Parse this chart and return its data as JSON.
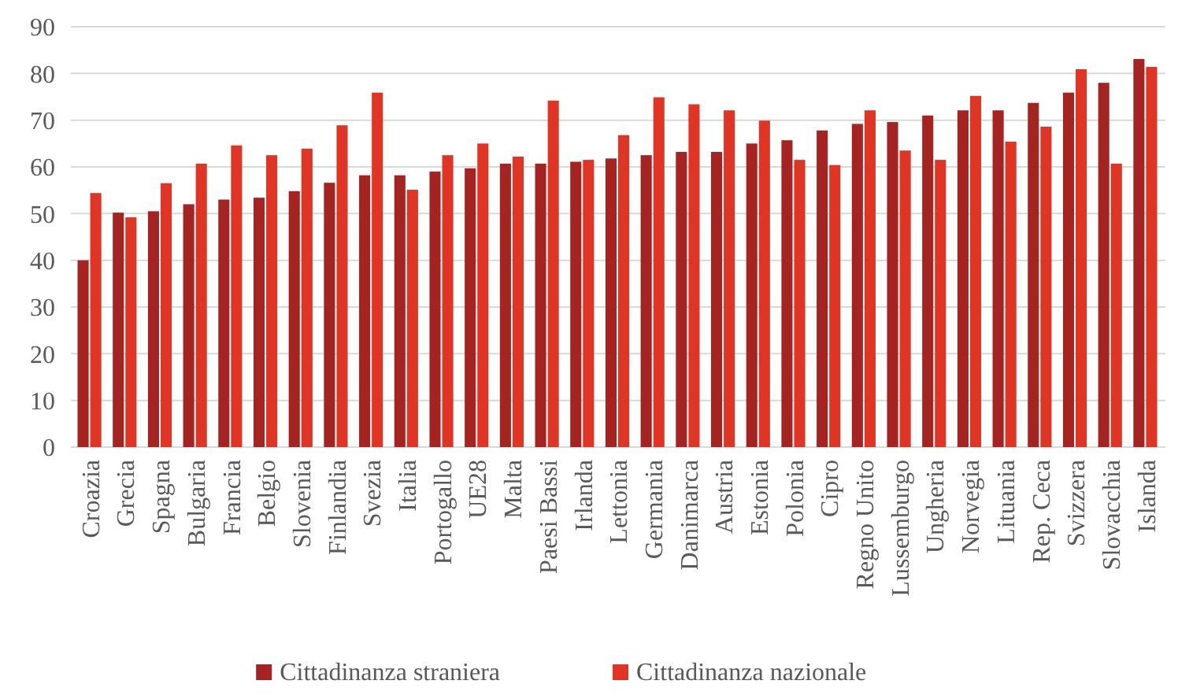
{
  "chart_data": {
    "type": "bar",
    "categories": [
      "Croazia",
      "Grecia",
      "Spagna",
      "Bulgaria",
      "Francia",
      "Belgio",
      "Slovenia",
      "Finlandia",
      "Svezia",
      "Italia",
      "Portogallo",
      "UE28",
      "Malta",
      "Paesi Bassi",
      "Irlanda",
      "Lettonia",
      "Germania",
      "Danimarca",
      "Austria",
      "Estonia",
      "Polonia",
      "Cipro",
      "Regno Unito",
      "Lussemburgo",
      "Ungheria",
      "Norvegia",
      "Lituania",
      "Rep. Ceca",
      "Svizzera",
      "Slovacchia",
      "Islanda"
    ],
    "series": [
      {
        "name": "Cittadinanza straniera",
        "color": "#a52422",
        "values": [
          40.0,
          50.2,
          50.5,
          52.0,
          53.0,
          53.4,
          54.8,
          56.6,
          58.2,
          58.2,
          59.0,
          59.7,
          60.7,
          60.7,
          61.1,
          61.8,
          62.5,
          63.2,
          63.2,
          65.0,
          65.7,
          67.8,
          69.2,
          69.6,
          71.0,
          72.1,
          72.1,
          73.7,
          75.9,
          78.0,
          83.1
        ]
      },
      {
        "name": "Cittadinanza nazionale",
        "color": "#e03424",
        "values": [
          54.4,
          49.2,
          56.5,
          60.7,
          64.6,
          62.5,
          63.9,
          68.9,
          75.9,
          55.1,
          62.5,
          65.0,
          62.2,
          74.2,
          61.5,
          66.8,
          74.9,
          73.4,
          72.1,
          69.9,
          61.5,
          60.4,
          72.1,
          63.5,
          61.5,
          75.2,
          65.4,
          68.6,
          80.9,
          60.7,
          81.4
        ]
      }
    ],
    "ylim": [
      0,
      90
    ],
    "yticks": [
      0,
      10,
      20,
      30,
      40,
      50,
      60,
      70,
      80,
      90
    ],
    "grid": "y",
    "legend": "bottom"
  }
}
